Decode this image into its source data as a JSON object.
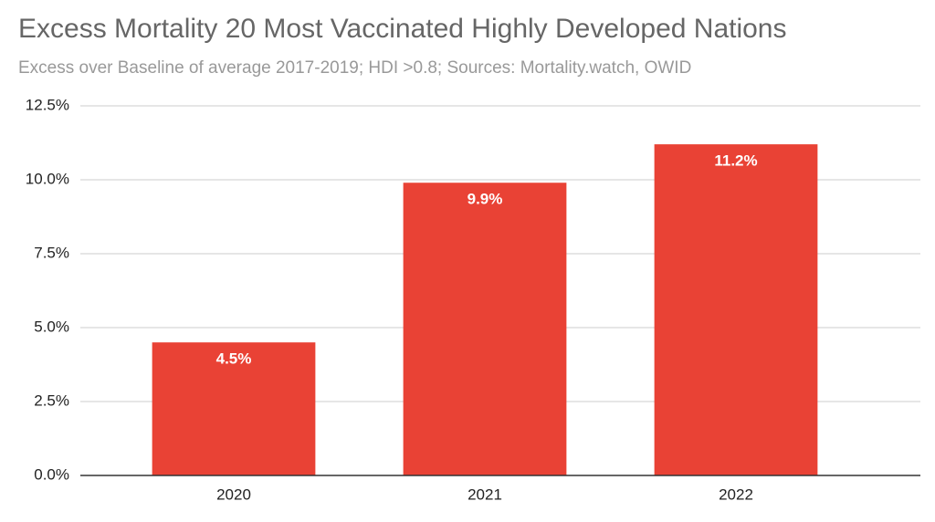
{
  "chart_data": {
    "type": "bar",
    "title": "Excess Mortality 20 Most Vaccinated Highly Developed Nations",
    "subtitle": "Excess over Baseline of average 2017-2019; HDI >0.8; Sources: Mortality.watch, OWID",
    "categories": [
      "2020",
      "2021",
      "2022"
    ],
    "values": [
      4.5,
      9.9,
      11.2
    ],
    "value_labels": [
      "4.5%",
      "9.9%",
      "11.2%"
    ],
    "color": "#e94235",
    "ylim": [
      0,
      12.5
    ],
    "yticks": [
      {
        "value": 0,
        "label": "0.0%"
      },
      {
        "value": 2.5,
        "label": "2.5%"
      },
      {
        "value": 5,
        "label": "5.0%"
      },
      {
        "value": 7.5,
        "label": "7.5%"
      },
      {
        "value": 10,
        "label": "10.0%"
      },
      {
        "value": 12.5,
        "label": "12.5%"
      }
    ],
    "grid": true
  }
}
